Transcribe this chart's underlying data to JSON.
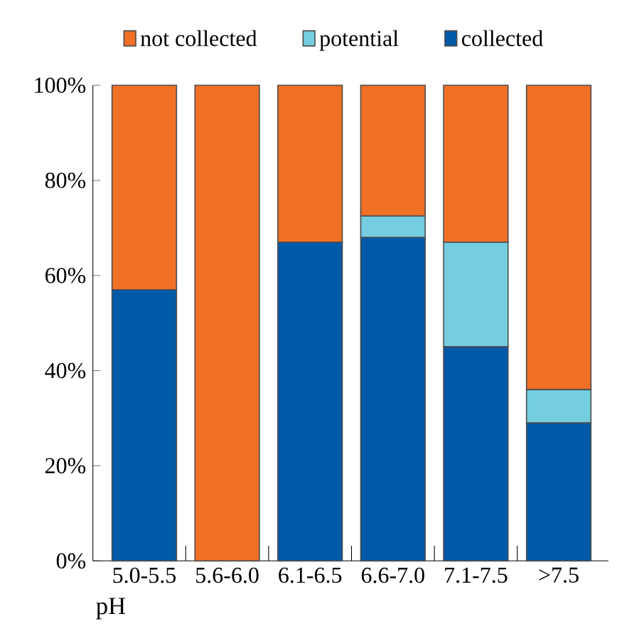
{
  "chart_data": {
    "type": "bar",
    "stacked": true,
    "xlabel": "pH",
    "categories": [
      "5.0-5.5",
      "5.6-6.0",
      "6.1-6.5",
      "6.6-7.0",
      "7.1-7.5",
      ">7.5"
    ],
    "series": [
      {
        "name": "collected",
        "color": "#005aa8",
        "values": [
          57,
          0,
          67,
          68,
          45,
          29
        ]
      },
      {
        "name": "potential",
        "color": "#74cee0",
        "values": [
          0,
          0,
          0,
          4.5,
          22,
          7
        ]
      },
      {
        "name": "not collected",
        "color": "#f07026",
        "values": [
          43,
          100,
          33,
          27.5,
          33,
          64
        ]
      }
    ],
    "ylim": [
      0,
      100
    ],
    "yticks": [
      {
        "value": 0,
        "label": "0%"
      },
      {
        "value": 20,
        "label": "20%"
      },
      {
        "value": 40,
        "label": "40%"
      },
      {
        "value": 60,
        "label": "60%"
      },
      {
        "value": 80,
        "label": "80%"
      },
      {
        "value": 100,
        "label": "100%"
      }
    ],
    "grid": false,
    "legend": "top"
  }
}
